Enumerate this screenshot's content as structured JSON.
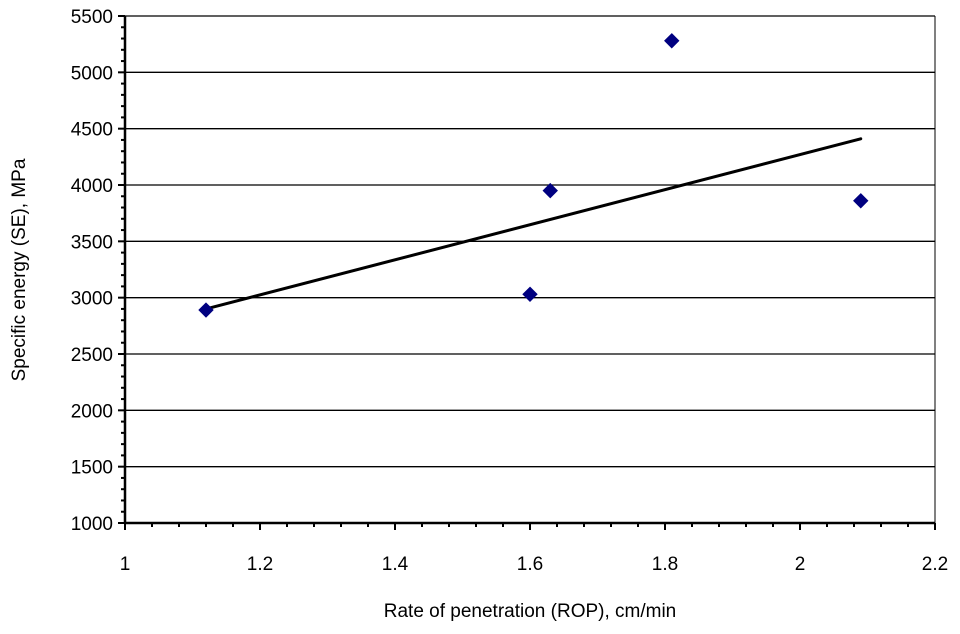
{
  "chart_data": {
    "type": "scatter",
    "xlabel": "Rate of penetration (ROP), cm/min",
    "ylabel": "Specific energy (SE), MPa",
    "xlim": [
      1,
      2.2
    ],
    "ylim": [
      1000,
      5500
    ],
    "x_ticks": [
      1,
      1.2,
      1.4,
      1.6,
      1.8,
      2,
      2.2
    ],
    "x_tick_labels": [
      "1",
      "1.2",
      "1.4",
      "1.6",
      "1.8",
      "2",
      "2.2"
    ],
    "y_ticks": [
      1000,
      1500,
      2000,
      2500,
      3000,
      3500,
      4000,
      4500,
      5000,
      5500
    ],
    "y_tick_labels": [
      "1000",
      "1500",
      "2000",
      "2500",
      "3000",
      "3500",
      "4000",
      "4500",
      "5000",
      "5500"
    ],
    "grid": "horizontal",
    "series": [
      {
        "marker": "diamond",
        "color": "#000080",
        "points": [
          {
            "x": 1.12,
            "y": 2890
          },
          {
            "x": 1.6,
            "y": 3030
          },
          {
            "x": 1.63,
            "y": 3950
          },
          {
            "x": 1.81,
            "y": 5280
          },
          {
            "x": 2.09,
            "y": 3860
          }
        ]
      }
    ],
    "trendline": {
      "type": "linear",
      "color": "#000000",
      "x_start": 1.12,
      "y_start": 2900,
      "x_end": 2.09,
      "y_end": 4410
    }
  }
}
